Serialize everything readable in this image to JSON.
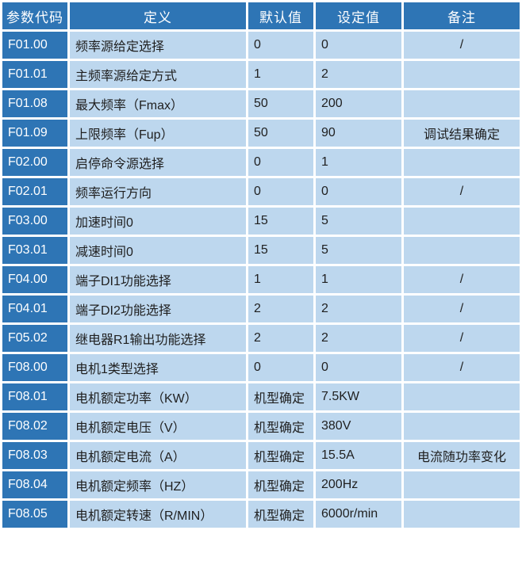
{
  "table": {
    "columns": [
      "参数代码",
      "定义",
      "默认值",
      "设定值",
      "备注"
    ],
    "rows": [
      {
        "code": "F01.00",
        "definition": "频率源给定选择",
        "default": "0",
        "set": "0",
        "remark": "/"
      },
      {
        "code": "F01.01",
        "definition": "主频率源给定方式",
        "default": "1",
        "set": "2",
        "remark": ""
      },
      {
        "code": "F01.08",
        "definition": "最大频率（Fmax）",
        "default": "50",
        "set": "200",
        "remark": ""
      },
      {
        "code": "F01.09",
        "definition": "上限频率（Fup）",
        "default": "50",
        "set": "90",
        "remark": "调试结果确定"
      },
      {
        "code": "F02.00",
        "definition": "启停命令源选择",
        "default": "0",
        "set": "1",
        "remark": ""
      },
      {
        "code": "F02.01",
        "definition": "频率运行方向",
        "default": "0",
        "set": "0",
        "remark": "/"
      },
      {
        "code": "F03.00",
        "definition": "加速时间0",
        "default": "15",
        "set": "5",
        "remark": ""
      },
      {
        "code": "F03.01",
        "definition": "减速时间0",
        "default": "15",
        "set": "5",
        "remark": ""
      },
      {
        "code": "F04.00",
        "definition": "端子DI1功能选择",
        "default": "1",
        "set": "1",
        "remark": "/"
      },
      {
        "code": "F04.01",
        "definition": "端子DI2功能选择",
        "default": "2",
        "set": "2",
        "remark": "/"
      },
      {
        "code": "F05.02",
        "definition": "继电器R1输出功能选择",
        "default": "2",
        "set": "2",
        "remark": "/"
      },
      {
        "code": "F08.00",
        "definition": "电机1类型选择",
        "default": "0",
        "set": "0",
        "remark": "/"
      },
      {
        "code": "F08.01",
        "definition": "电机额定功率（KW）",
        "default": "机型确定",
        "set": "7.5KW",
        "remark": ""
      },
      {
        "code": "F08.02",
        "definition": "电机额定电压（V）",
        "default": "机型确定",
        "set": "380V",
        "remark": ""
      },
      {
        "code": "F08.03",
        "definition": "电机额定电流（A）",
        "default": "机型确定",
        "set": "15.5A",
        "remark": "电流随功率变化"
      },
      {
        "code": "F08.04",
        "definition": "电机额定频率（HZ）",
        "default": "机型确定",
        "set": "200Hz",
        "remark": ""
      },
      {
        "code": "F08.05",
        "definition": "电机额定转速（R/MIN）",
        "default": "机型确定",
        "set": "6000r/min",
        "remark": ""
      }
    ]
  },
  "colors": {
    "header_bg": "#2E75B5",
    "code_column_bg": "#2E75B5",
    "data_cell_bg": "#BDD7EE",
    "gridline": "#FFFFFF",
    "header_text": "#FFFFFF",
    "data_text": "#1F1F1F"
  }
}
